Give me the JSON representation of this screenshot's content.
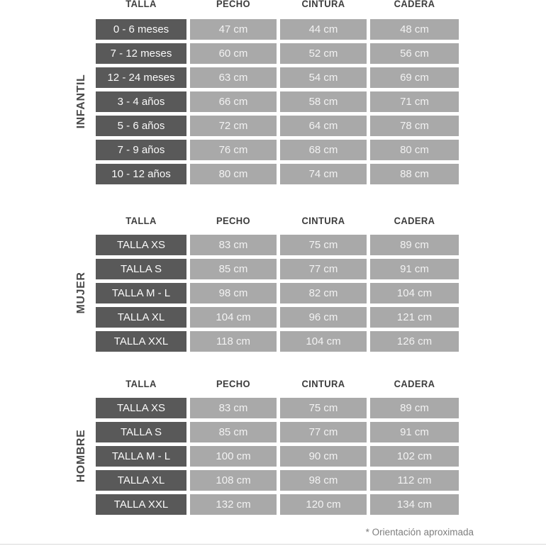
{
  "footnote": "* Orientación aproximada",
  "colors": {
    "size_cell_bg": "#595959",
    "value_cell_bg": "#a9a9a9",
    "header_text": "#3d3d3d",
    "cell_text": "#f2f2f2",
    "section_label_text": "#4a4a4a",
    "footnote_text": "#7e7e7e"
  },
  "chart_data": [
    {
      "type": "table",
      "section": "INFANTIL",
      "columns": [
        "TALLA",
        "PECHO",
        "CINTURA",
        "CADERA"
      ],
      "rows": [
        [
          "0 - 6 meses",
          "47 cm",
          "44 cm",
          "48 cm"
        ],
        [
          "7 - 12 meses",
          "60 cm",
          "52 cm",
          "56 cm"
        ],
        [
          "12 - 24 meses",
          "63 cm",
          "54 cm",
          "69 cm"
        ],
        [
          "3 - 4 años",
          "66 cm",
          "58 cm",
          "71 cm"
        ],
        [
          "5 - 6 años",
          "72 cm",
          "64 cm",
          "78 cm"
        ],
        [
          "7 - 9 años",
          "76 cm",
          "68 cm",
          "80 cm"
        ],
        [
          "10 - 12 años",
          "80 cm",
          "74 cm",
          "88 cm"
        ]
      ]
    },
    {
      "type": "table",
      "section": "MUJER",
      "columns": [
        "TALLA",
        "PECHO",
        "CINTURA",
        "CADERA"
      ],
      "rows": [
        [
          "TALLA XS",
          "83 cm",
          "75 cm",
          "89 cm"
        ],
        [
          "TALLA S",
          "85 cm",
          "77 cm",
          "91 cm"
        ],
        [
          "TALLA M - L",
          "98 cm",
          "82 cm",
          "104 cm"
        ],
        [
          "TALLA XL",
          "104 cm",
          "96 cm",
          "121 cm"
        ],
        [
          "TALLA XXL",
          "118 cm",
          "104 cm",
          "126 cm"
        ]
      ]
    },
    {
      "type": "table",
      "section": "HOMBRE",
      "columns": [
        "TALLA",
        "PECHO",
        "CINTURA",
        "CADERA"
      ],
      "rows": [
        [
          "TALLA XS",
          "83 cm",
          "75 cm",
          "89 cm"
        ],
        [
          "TALLA S",
          "85 cm",
          "77 cm",
          "91 cm"
        ],
        [
          "TALLA M - L",
          "100 cm",
          "90 cm",
          "102 cm"
        ],
        [
          "TALLA XL",
          "108 cm",
          "98 cm",
          "112 cm"
        ],
        [
          "TALLA XXL",
          "132 cm",
          "120 cm",
          "134 cm"
        ]
      ]
    }
  ]
}
